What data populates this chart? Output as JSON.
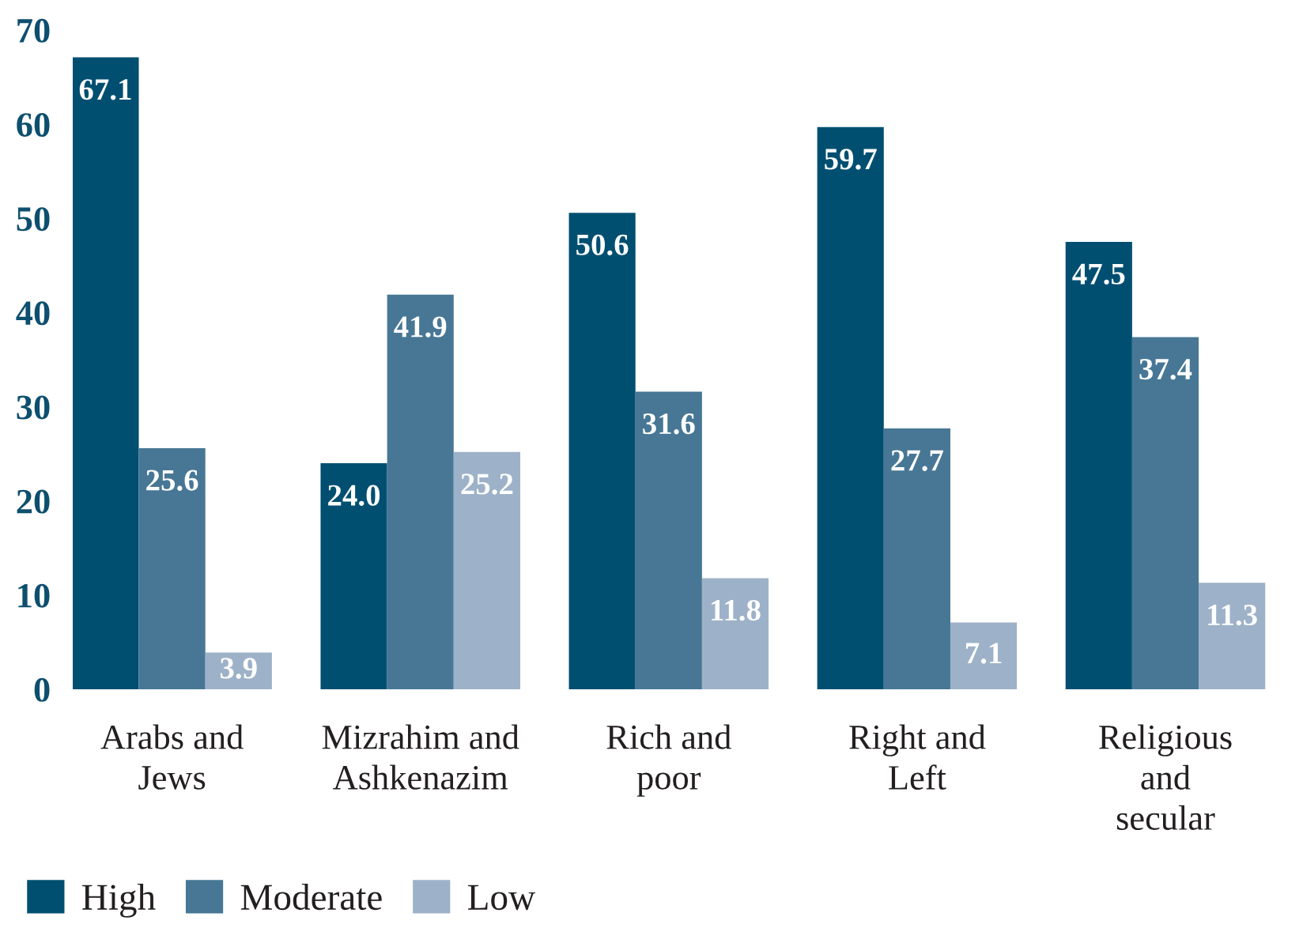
{
  "chart_data": {
    "type": "bar",
    "categories": [
      "Arabs and\nJews",
      "Mizrahim and\nAshkenazim",
      "Rich and\npoor",
      "Right and\nLeft",
      "Religious\nand\nsecular"
    ],
    "series": [
      {
        "name": "High",
        "color": "#004f71",
        "values": [
          67.1,
          24.0,
          50.6,
          59.7,
          47.5
        ],
        "value_labels": [
          "67.1",
          "24.0",
          "50.6",
          "59.7",
          "47.5"
        ]
      },
      {
        "name": "Moderate",
        "color": "#477795",
        "values": [
          25.6,
          41.9,
          31.6,
          27.7,
          37.4
        ],
        "value_labels": [
          "25.6",
          "41.9",
          "31.6",
          "27.7",
          "37.4"
        ]
      },
      {
        "name": "Low",
        "color": "#9db2c8",
        "values": [
          3.9,
          25.2,
          11.8,
          7.1,
          11.3
        ],
        "value_labels": [
          "3.9",
          "25.2",
          "11.8",
          "7.1",
          "11.3"
        ]
      }
    ],
    "ylim": [
      0,
      70
    ],
    "yticks": [
      0,
      10,
      20,
      30,
      40,
      50,
      60,
      70
    ],
    "grid": false,
    "legend": "bottom left"
  }
}
